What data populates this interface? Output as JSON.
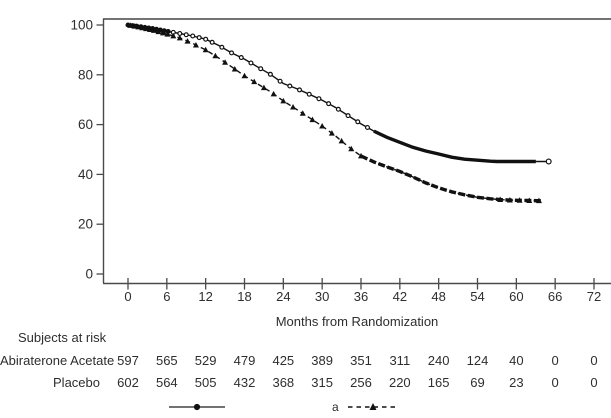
{
  "chart_data": {
    "type": "line",
    "title": "",
    "xlabel": "Months from Randomization",
    "ylabel": "",
    "xlim": [
      0,
      72
    ],
    "ylim": [
      0,
      100
    ],
    "x_ticks": [
      0,
      6,
      12,
      18,
      24,
      30,
      36,
      42,
      48,
      54,
      60,
      66,
      72
    ],
    "y_ticks": [
      0,
      20,
      40,
      60,
      80,
      100
    ],
    "grid": false,
    "legend_position": "bottom",
    "legend_fragment": "a",
    "series": [
      {
        "name": "Abiraterone Acetate",
        "line_style": "solid",
        "marker": "circle",
        "color": "#111111",
        "points": [
          [
            0,
            100
          ],
          [
            2,
            99.3
          ],
          [
            4,
            98.5
          ],
          [
            6,
            97.5
          ],
          [
            8,
            96.6
          ],
          [
            10,
            95.6
          ],
          [
            12,
            94.3
          ],
          [
            14,
            91.8
          ],
          [
            16,
            88.8
          ],
          [
            18,
            86.3
          ],
          [
            20,
            83.2
          ],
          [
            22,
            80.2
          ],
          [
            24,
            76.5
          ],
          [
            26,
            74.5
          ],
          [
            28,
            72.2
          ],
          [
            30,
            69.8
          ],
          [
            32,
            67.0
          ],
          [
            34,
            63.6
          ],
          [
            36,
            60.3
          ],
          [
            38,
            57.4
          ],
          [
            40,
            54.9
          ],
          [
            42,
            52.9
          ],
          [
            44,
            50.9
          ],
          [
            46,
            49.4
          ],
          [
            48,
            48.2
          ],
          [
            50,
            46.9
          ],
          [
            52,
            46.1
          ],
          [
            54,
            45.7
          ],
          [
            56,
            45.3
          ],
          [
            57,
            45.2
          ],
          [
            63,
            45.2
          ],
          [
            65,
            45.2
          ]
        ],
        "marker_months": [
          0,
          0.7,
          1.3,
          2,
          2.6,
          3.2,
          3.8,
          4.4,
          5,
          5.6,
          6.2,
          7,
          8,
          9,
          10,
          11,
          12,
          13,
          14.5,
          16,
          17.5,
          19,
          20.5,
          22,
          23.5,
          25,
          26.5,
          28,
          29.5,
          31,
          32.5,
          34,
          35.5,
          37
        ],
        "end_marker_month": 65,
        "censor_dense_range": [
          38,
          63
        ]
      },
      {
        "name": "Placebo",
        "line_style": "dashed",
        "marker": "triangle",
        "color": "#111111",
        "points": [
          [
            0,
            100
          ],
          [
            2,
            99.0
          ],
          [
            4,
            97.8
          ],
          [
            6,
            96.4
          ],
          [
            8,
            94.8
          ],
          [
            10,
            92.6
          ],
          [
            12,
            90.0
          ],
          [
            14,
            86.8
          ],
          [
            16,
            83.2
          ],
          [
            18,
            79.6
          ],
          [
            20,
            76.4
          ],
          [
            22,
            73.2
          ],
          [
            24,
            69.5
          ],
          [
            26,
            66.2
          ],
          [
            28,
            62.8
          ],
          [
            30,
            59.4
          ],
          [
            32,
            55.6
          ],
          [
            34,
            51.2
          ],
          [
            36,
            47.4
          ],
          [
            38,
            45.0
          ],
          [
            40,
            43.0
          ],
          [
            42,
            41.2
          ],
          [
            44,
            39.0
          ],
          [
            46,
            36.6
          ],
          [
            48,
            34.6
          ],
          [
            50,
            33.0
          ],
          [
            52,
            31.8
          ],
          [
            54,
            30.8
          ],
          [
            56,
            30.2
          ],
          [
            58,
            29.8
          ],
          [
            60,
            29.6
          ],
          [
            62,
            29.5
          ],
          [
            63.8,
            29.4
          ]
        ],
        "marker_months": [
          0.4,
          1,
          1.6,
          2.2,
          2.8,
          3.4,
          4,
          4.7,
          5.4,
          6.1,
          7,
          8,
          9.2,
          10.5,
          12,
          13.5,
          15,
          16.5,
          18,
          19.5,
          21,
          22.5,
          24,
          25.5,
          27,
          28.5,
          30,
          31.5,
          33,
          34.5,
          36,
          57.5,
          59,
          60.5,
          62,
          63.5
        ],
        "censor_dense_range": [
          36,
          63.8
        ]
      }
    ],
    "at_risk": {
      "title": "Subjects at risk",
      "months": [
        0,
        6,
        12,
        18,
        24,
        30,
        36,
        42,
        48,
        54,
        60,
        66,
        72
      ],
      "rows": [
        {
          "label": "Abiraterone Acetate",
          "counts": [
            597,
            565,
            529,
            479,
            425,
            389,
            351,
            311,
            240,
            124,
            40,
            0,
            0
          ]
        },
        {
          "label": "Placebo",
          "counts": [
            602,
            564,
            505,
            432,
            368,
            315,
            256,
            220,
            165,
            69,
            23,
            0,
            0
          ]
        }
      ]
    }
  },
  "colors": {
    "curve": "#111111",
    "frame": "#5f5f5f",
    "axis": "#4a4a4a",
    "text": "#2e2e2e",
    "background": "#ffffff"
  }
}
